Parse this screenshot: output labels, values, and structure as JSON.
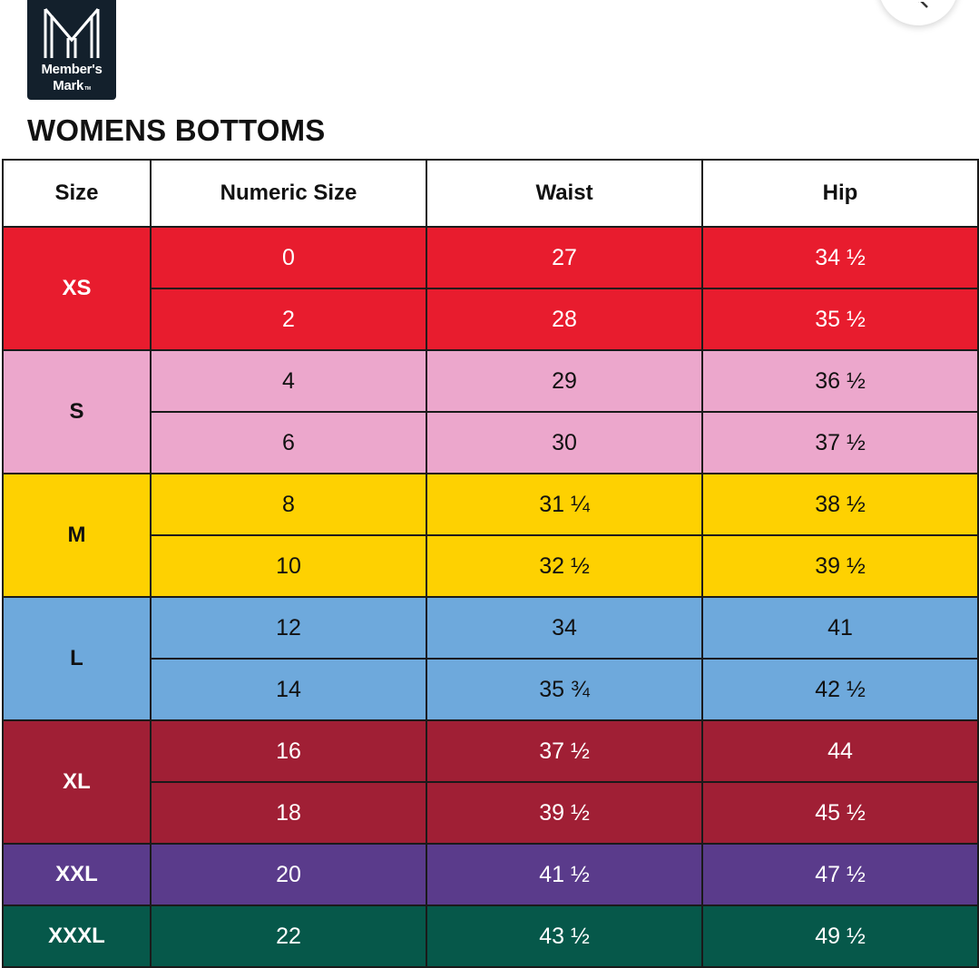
{
  "brand": {
    "logo_lines": [
      "Member's",
      "Mark"
    ],
    "logo_tm": "TM",
    "logo_bg": "#13202c"
  },
  "corner_button": {
    "icon": "search-icon"
  },
  "page_title": "WOMENS BOTTOMS",
  "table": {
    "headers": [
      "Size",
      "Numeric Size",
      "Waist",
      "Hip"
    ],
    "groups": [
      {
        "size": "XS",
        "color": "#e81c2e",
        "rows": [
          {
            "numeric": "0",
            "waist": "27",
            "hip": "34 ½"
          },
          {
            "numeric": "2",
            "waist": "28",
            "hip": "35 ½"
          }
        ]
      },
      {
        "size": "S",
        "color": "#eca7cc",
        "rows": [
          {
            "numeric": "4",
            "waist": "29",
            "hip": "36 ½"
          },
          {
            "numeric": "6",
            "waist": "30",
            "hip": "37 ½"
          }
        ]
      },
      {
        "size": "M",
        "color": "#fed101",
        "rows": [
          {
            "numeric": "8",
            "waist": "31 ¼",
            "hip": "38 ½"
          },
          {
            "numeric": "10",
            "waist": "32 ½",
            "hip": "39 ½"
          }
        ]
      },
      {
        "size": "L",
        "color": "#6ea9dc",
        "rows": [
          {
            "numeric": "12",
            "waist": "34",
            "hip": "41"
          },
          {
            "numeric": "14",
            "waist": "35 ¾",
            "hip": "42 ½"
          }
        ]
      },
      {
        "size": "XL",
        "color": "#a01f35",
        "rows": [
          {
            "numeric": "16",
            "waist": "37 ½",
            "hip": "44"
          },
          {
            "numeric": "18",
            "waist": "39 ½",
            "hip": "45 ½"
          }
        ]
      },
      {
        "size": "XXL",
        "color": "#5a3b8b",
        "rows": [
          {
            "numeric": "20",
            "waist": "41 ½",
            "hip": "47 ½"
          }
        ]
      },
      {
        "size": "XXXL",
        "color": "#06584a",
        "rows": [
          {
            "numeric": "22",
            "waist": "43 ½",
            "hip": "49 ½"
          }
        ]
      }
    ]
  }
}
